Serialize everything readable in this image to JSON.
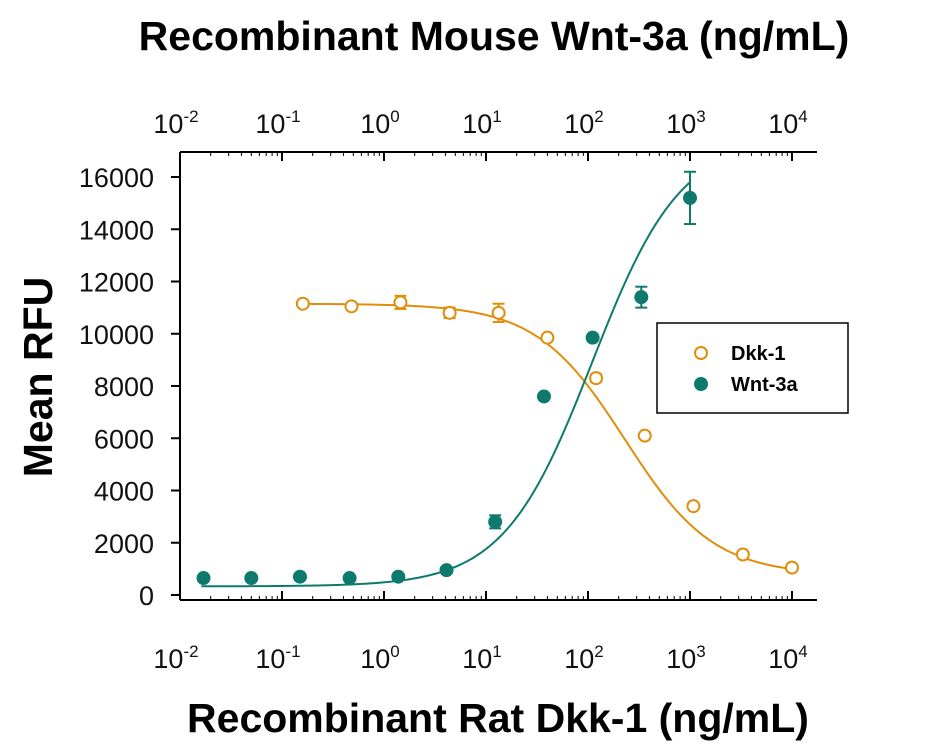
{
  "chart_data": {
    "type": "scatter",
    "title": "Recombinant Mouse Wnt-3a (ng/mL)",
    "xlabel": "Recombinant Rat Dkk-1 (ng/mL)",
    "ylabel": "Mean RFU",
    "xscale": "log",
    "xlim": [
      0.01,
      10000
    ],
    "ylim": [
      0,
      16000
    ],
    "x_ticks": [
      0.01,
      0.1,
      1,
      10,
      100,
      1000,
      10000
    ],
    "y_ticks": [
      0,
      2000,
      4000,
      6000,
      8000,
      10000,
      12000,
      14000,
      16000
    ],
    "y_tick_labels": [
      "0",
      "2000",
      "4000",
      "6000",
      "8000",
      "10000",
      "12000",
      "14000",
      "16000"
    ],
    "tick_exponents": [
      "-2",
      "-1",
      "0",
      "1",
      "2",
      "3",
      "4"
    ],
    "tick_base": "10",
    "legend_position": "right",
    "series": [
      {
        "name": "Dkk-1",
        "marker": "open-circle",
        "color": "#E08E0B",
        "x": [
          0.16,
          0.48,
          1.45,
          4.4,
          13.3,
          40,
          120,
          360,
          1080,
          3300,
          10000
        ],
        "y": [
          11150,
          11050,
          11200,
          10800,
          10800,
          9850,
          8300,
          6100,
          3400,
          1550,
          1050
        ],
        "error": [
          0,
          0,
          250,
          200,
          350,
          0,
          150,
          0,
          0,
          0,
          0
        ],
        "fit": {
          "bottom": 760,
          "top": 11150,
          "ec50": 230,
          "hill": 1.0
        }
      },
      {
        "name": "Wnt-3a",
        "marker": "filled-circle",
        "color": "#0E7A6E",
        "x": [
          0.017,
          0.05,
          0.15,
          0.46,
          1.38,
          4.1,
          12.3,
          37,
          111,
          333,
          1000
        ],
        "y": [
          650,
          650,
          700,
          650,
          700,
          950,
          2800,
          7600,
          9850,
          11400,
          15200
        ],
        "error": [
          0,
          0,
          0,
          0,
          0,
          0,
          250,
          0,
          0,
          400,
          1000
        ],
        "fit": {
          "bottom": 330,
          "top": 17500,
          "ec50": 110,
          "hill": 1.0,
          "x_end": 1000
        }
      }
    ]
  }
}
